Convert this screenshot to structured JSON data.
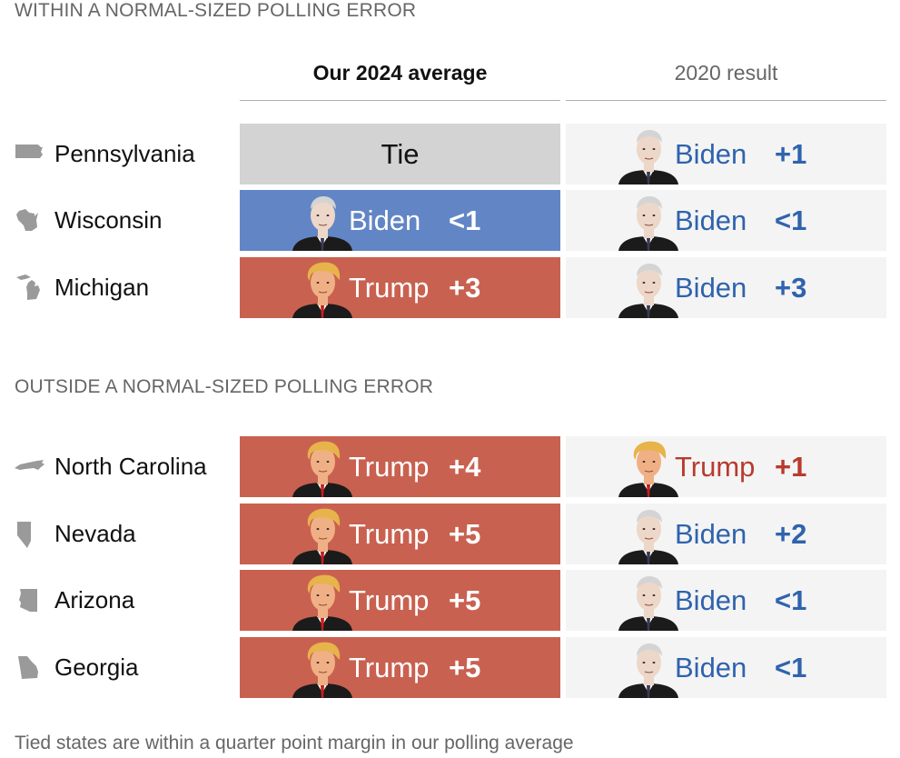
{
  "section_within": "WITHIN A NORMAL-SIZED POLLING ERROR",
  "section_outside": "OUTSIDE A NORMAL-SIZED POLLING ERROR",
  "columns": {
    "current": "Our 2024 average",
    "previous": "2020 result"
  },
  "footnote": "Tied states are within a quarter point margin in our polling average",
  "colors": {
    "biden": "#6285c5",
    "trump": "#c96150",
    "tie": "#d3d3d3",
    "biden_text": "#2f63ad",
    "trump_text": "#b93a2e",
    "result_bg": "#f4f4f4"
  },
  "chart_data": {
    "type": "table",
    "rows": [
      {
        "group": "within",
        "state": "Pennsylvania",
        "icon": "pennsylvania-shape-icon",
        "avg_2024": {
          "leader": "Tie",
          "margin": ""
        },
        "result_2020": {
          "leader": "Biden",
          "margin": "+1"
        }
      },
      {
        "group": "within",
        "state": "Wisconsin",
        "icon": "wisconsin-shape-icon",
        "avg_2024": {
          "leader": "Biden",
          "margin": "<1"
        },
        "result_2020": {
          "leader": "Biden",
          "margin": "<1"
        }
      },
      {
        "group": "within",
        "state": "Michigan",
        "icon": "michigan-shape-icon",
        "avg_2024": {
          "leader": "Trump",
          "margin": "+3"
        },
        "result_2020": {
          "leader": "Biden",
          "margin": "+3"
        }
      },
      {
        "group": "outside",
        "state": "North Carolina",
        "icon": "north-carolina-shape-icon",
        "avg_2024": {
          "leader": "Trump",
          "margin": "+4"
        },
        "result_2020": {
          "leader": "Trump",
          "margin": "+1"
        }
      },
      {
        "group": "outside",
        "state": "Nevada",
        "icon": "nevada-shape-icon",
        "avg_2024": {
          "leader": "Trump",
          "margin": "+5"
        },
        "result_2020": {
          "leader": "Biden",
          "margin": "+2"
        }
      },
      {
        "group": "outside",
        "state": "Arizona",
        "icon": "arizona-shape-icon",
        "avg_2024": {
          "leader": "Trump",
          "margin": "+5"
        },
        "result_2020": {
          "leader": "Biden",
          "margin": "<1"
        }
      },
      {
        "group": "outside",
        "state": "Georgia",
        "icon": "georgia-shape-icon",
        "avg_2024": {
          "leader": "Trump",
          "margin": "+5"
        },
        "result_2020": {
          "leader": "Biden",
          "margin": "<1"
        }
      }
    ]
  }
}
